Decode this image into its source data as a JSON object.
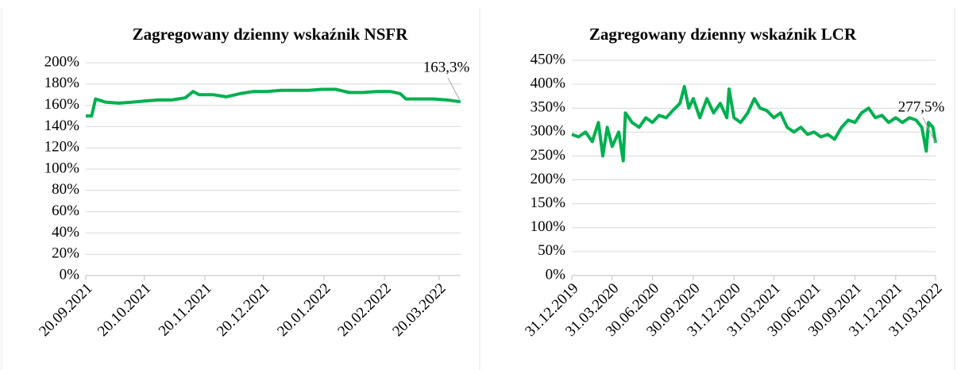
{
  "chart_data": [
    {
      "type": "line",
      "title": "Zagregowany dzienny wskaźnik NSFR",
      "x": [
        "20.09.2021",
        "23.09.2021",
        "25.09.2021",
        "30.09.2021",
        "07.10.2021",
        "14.10.2021",
        "20.10.2021",
        "27.10.2021",
        "03.11.2021",
        "10.11.2021",
        "14.11.2021",
        "17.11.2021",
        "24.11.2021",
        "01.12.2021",
        "08.12.2021",
        "15.12.2021",
        "22.12.2021",
        "29.12.2021",
        "05.01.2022",
        "12.01.2022",
        "19.01.2022",
        "26.01.2022",
        "02.02.2022",
        "09.02.2022",
        "16.02.2022",
        "23.02.2022",
        "28.02.2022",
        "03.03.2022",
        "10.03.2022",
        "17.03.2022",
        "24.03.2022",
        "31.03.2022"
      ],
      "series": [
        {
          "color": "#00b050",
          "values": [
            150,
            150,
            166,
            163,
            162,
            163,
            164,
            165,
            165,
            167,
            173,
            170,
            170,
            168,
            171,
            173,
            173,
            174,
            174,
            174,
            175,
            175,
            172,
            172,
            173,
            173,
            171,
            166,
            166,
            166,
            165,
            163.3
          ],
          "value_labels": [
            null,
            null,
            null,
            null,
            null,
            null,
            null,
            null,
            null,
            null,
            null,
            null,
            null,
            null,
            null,
            null,
            null,
            null,
            null,
            null,
            null,
            null,
            null,
            null,
            null,
            null,
            null,
            null,
            null,
            null,
            null,
            "163,3%"
          ]
        }
      ],
      "xlim": [
        "20.09.2021",
        "31.03.2022"
      ],
      "xticks": [
        "20.09.2021",
        "20.10.2021",
        "20.11.2021",
        "20.12.2021",
        "20.01.2022",
        "20.02.2022",
        "20.03.2022"
      ],
      "ylim": [
        0,
        200
      ],
      "yticks": [
        {
          "value": 0,
          "label": "0%"
        },
        {
          "value": 20,
          "label": "20%"
        },
        {
          "value": 40,
          "label": "40%"
        },
        {
          "value": 60,
          "label": "60%"
        },
        {
          "value": 80,
          "label": "80%"
        },
        {
          "value": 100,
          "label": "100%"
        },
        {
          "value": 120,
          "label": "120%"
        },
        {
          "value": 140,
          "label": "140%"
        },
        {
          "value": 160,
          "label": "160%"
        },
        {
          "value": 180,
          "label": "180%"
        },
        {
          "value": 200,
          "label": "200%"
        }
      ],
      "grid": true
    },
    {
      "type": "line",
      "title": "Zagregowany dzienny wskaźnik LCR",
      "x": [
        "31.12.2019",
        "15.01.2020",
        "31.01.2020",
        "15.02.2020",
        "29.02.2020",
        "10.03.2020",
        "20.03.2020",
        "31.03.2020",
        "15.04.2020",
        "25.04.2020",
        "30.04.2020",
        "15.05.2020",
        "31.05.2020",
        "15.06.2020",
        "30.06.2020",
        "15.07.2020",
        "31.07.2020",
        "15.08.2020",
        "31.08.2020",
        "10.09.2020",
        "20.09.2020",
        "30.09.2020",
        "15.10.2020",
        "31.10.2020",
        "15.11.2020",
        "30.11.2020",
        "15.12.2020",
        "20.12.2020",
        "31.12.2020",
        "15.01.2021",
        "31.01.2021",
        "15.02.2021",
        "28.02.2021",
        "15.03.2021",
        "31.03.2021",
        "15.04.2021",
        "30.04.2021",
        "15.05.2021",
        "31.05.2021",
        "15.06.2021",
        "30.06.2021",
        "15.07.2021",
        "31.07.2021",
        "15.08.2021",
        "31.08.2021",
        "15.09.2021",
        "30.09.2021",
        "15.10.2021",
        "31.10.2021",
        "15.11.2021",
        "30.11.2021",
        "15.12.2021",
        "31.12.2021",
        "15.01.2022",
        "31.01.2022",
        "15.02.2022",
        "28.02.2022",
        "10.03.2022",
        "15.03.2022",
        "25.03.2022",
        "31.03.2022"
      ],
      "series": [
        {
          "color": "#00b050",
          "values": [
            295,
            290,
            300,
            280,
            320,
            250,
            310,
            270,
            300,
            240,
            340,
            320,
            310,
            330,
            320,
            335,
            330,
            345,
            360,
            395,
            350,
            370,
            330,
            370,
            340,
            360,
            330,
            390,
            330,
            320,
            340,
            370,
            350,
            345,
            330,
            340,
            310,
            300,
            310,
            295,
            300,
            290,
            295,
            285,
            310,
            325,
            320,
            340,
            350,
            330,
            335,
            320,
            330,
            320,
            330,
            325,
            310,
            260,
            320,
            310,
            277.5
          ],
          "value_labels": [
            null,
            null,
            null,
            null,
            null,
            null,
            null,
            null,
            null,
            null,
            null,
            null,
            null,
            null,
            null,
            null,
            null,
            null,
            null,
            null,
            null,
            null,
            null,
            null,
            null,
            null,
            null,
            null,
            null,
            null,
            null,
            null,
            null,
            null,
            null,
            null,
            null,
            null,
            null,
            null,
            null,
            null,
            null,
            null,
            null,
            null,
            null,
            null,
            null,
            null,
            null,
            null,
            null,
            null,
            null,
            null,
            null,
            null,
            null,
            null,
            "277,5%"
          ]
        }
      ],
      "xlim": [
        "31.12.2019",
        "31.03.2022"
      ],
      "xticks": [
        "31.12.2019",
        "31.03.2020",
        "30.06.2020",
        "30.09.2020",
        "31.12.2020",
        "31.03.2021",
        "30.06.2021",
        "30.09.2021",
        "31.12.2021",
        "31.03.2022"
      ],
      "ylim": [
        0,
        450
      ],
      "yticks": [
        {
          "value": 0,
          "label": "0%"
        },
        {
          "value": 50,
          "label": "50%"
        },
        {
          "value": 100,
          "label": "100%"
        },
        {
          "value": 150,
          "label": "150%"
        },
        {
          "value": 200,
          "label": "200%"
        },
        {
          "value": 250,
          "label": "250%"
        },
        {
          "value": 300,
          "label": "300%"
        },
        {
          "value": 350,
          "label": "350%"
        },
        {
          "value": 400,
          "label": "400%"
        },
        {
          "value": 450,
          "label": "450%"
        }
      ],
      "grid": true
    }
  ]
}
